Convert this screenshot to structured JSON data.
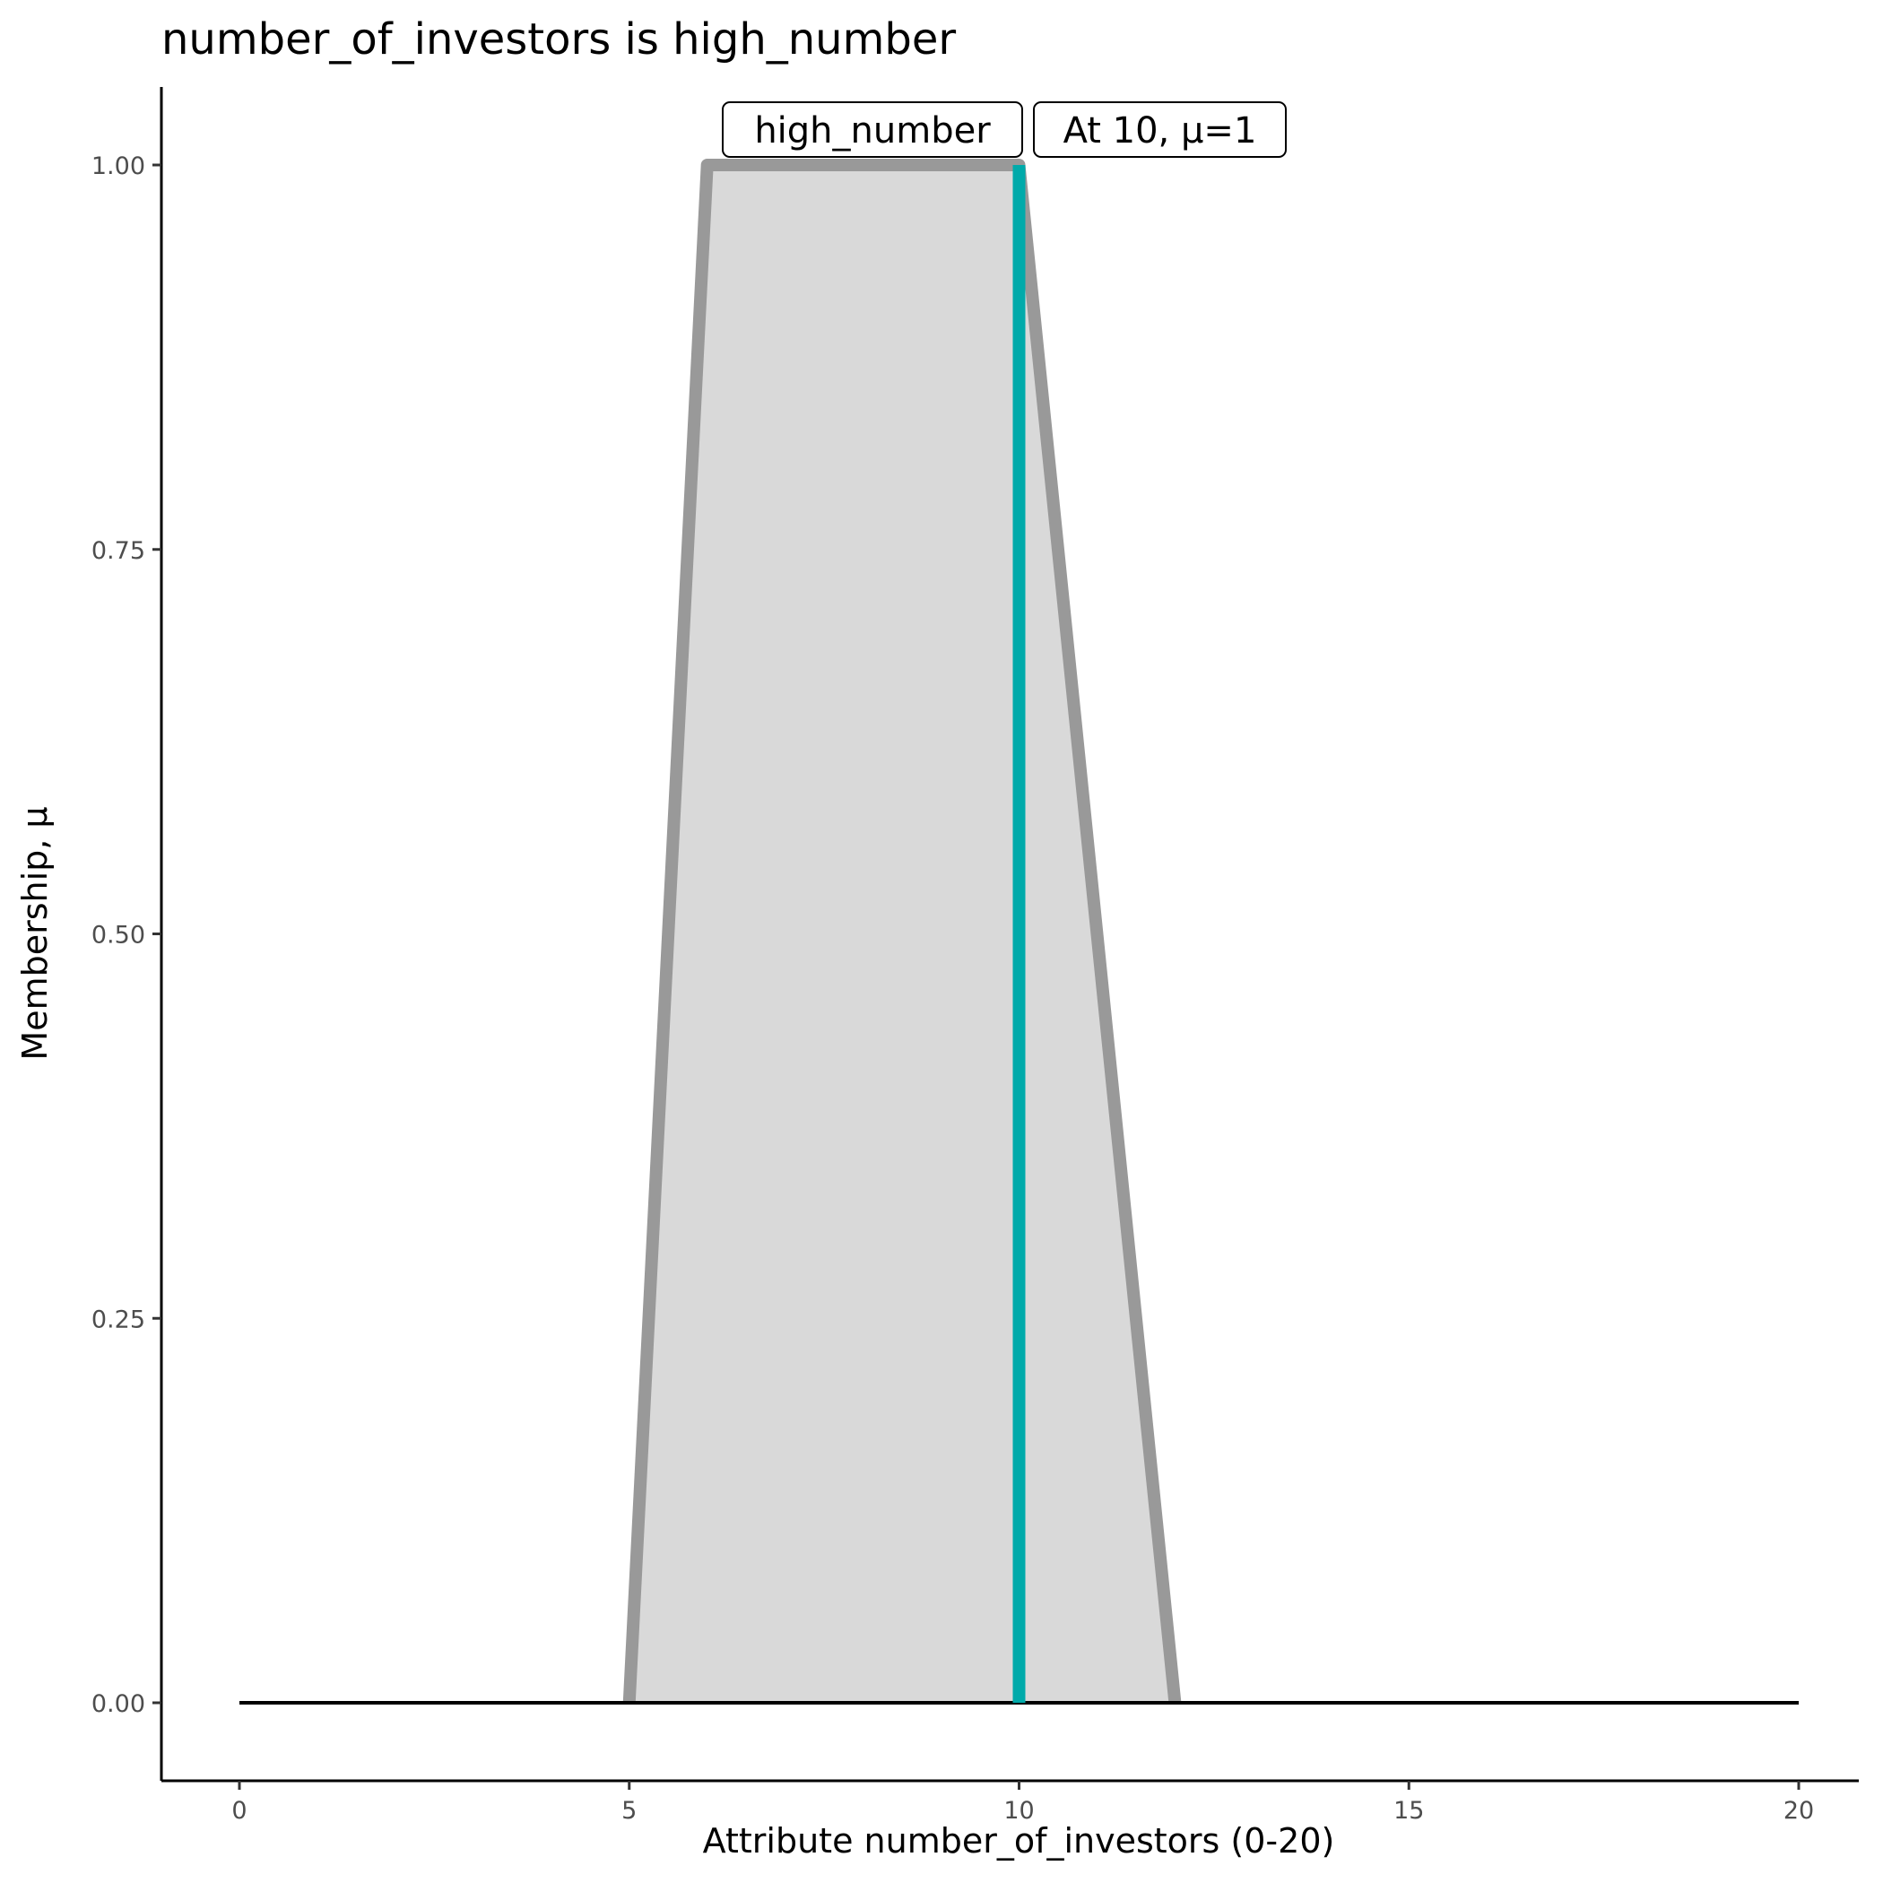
{
  "chart_data": {
    "type": "area",
    "title": "number_of_investors is high_number",
    "xlabel": "Attribute number_of_investors (0-20)",
    "ylabel": "Membership, μ",
    "xlim": [
      0,
      20
    ],
    "ylim": [
      0,
      1
    ],
    "x_ticks": [
      "0",
      "5",
      "10",
      "15",
      "20"
    ],
    "y_ticks": [
      "0.00",
      "0.25",
      "0.50",
      "0.75",
      "1.00"
    ],
    "grid": false,
    "series": [
      {
        "name": "high_number",
        "x": [
          0,
          5,
          6,
          10,
          12,
          20
        ],
        "y": [
          0,
          0,
          1,
          1,
          0,
          0
        ],
        "fill": "#d9d9d9",
        "stroke": "#999999"
      }
    ],
    "marker": {
      "x": 10,
      "mu": 1,
      "color": "#00aaaa"
    },
    "annotations": [
      "high_number",
      "At 10, μ=1"
    ]
  }
}
